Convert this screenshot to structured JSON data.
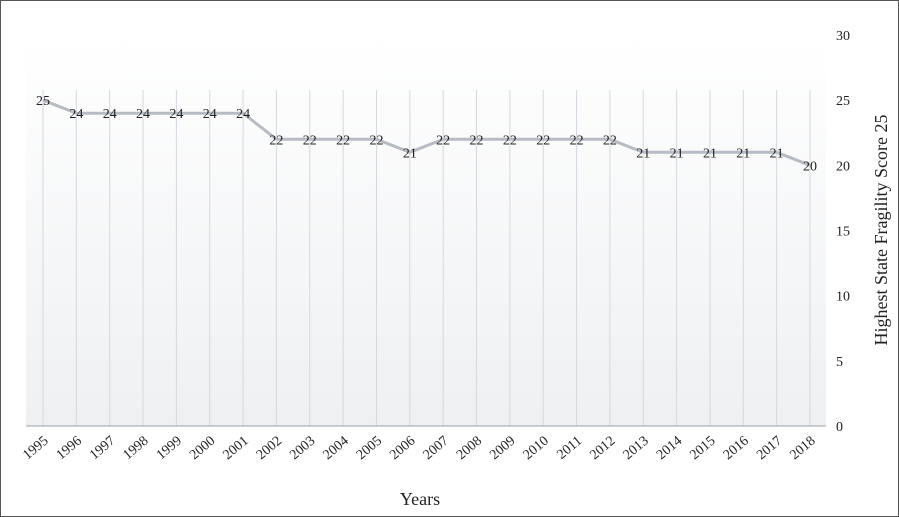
{
  "chart_data": {
    "type": "line",
    "x": [
      "1995",
      "1996",
      "1997",
      "1998",
      "1999",
      "2000",
      "2001",
      "2002",
      "2003",
      "2004",
      "2005",
      "2006",
      "2007",
      "2008",
      "2009",
      "2010",
      "2011",
      "2012",
      "2013",
      "2014",
      "2015",
      "2016",
      "2017",
      "2018"
    ],
    "values": [
      25,
      24,
      24,
      24,
      24,
      24,
      24,
      22,
      22,
      22,
      22,
      21,
      22,
      22,
      22,
      22,
      22,
      22,
      21,
      21,
      21,
      21,
      21,
      20
    ],
    "data_labels": [
      "25",
      "24",
      "24",
      "24",
      "24",
      "24",
      "24",
      "22",
      "22",
      "22",
      "22",
      "21",
      "22",
      "22",
      "22",
      "22",
      "22",
      "22",
      "21",
      "21",
      "21",
      "21",
      "21",
      "20"
    ],
    "xlabel": "Years",
    "ylabel": "Highest State Fragility Score 25",
    "ylim": [
      0,
      30
    ],
    "yticks": [
      "0",
      "5",
      "10",
      "15",
      "20",
      "25",
      "30"
    ],
    "y_axis_side": "right",
    "grid": "vertical",
    "line_color": "#b7bcc4",
    "grid_color": "#d4d8de",
    "plot_bg_top": "#ffffff",
    "plot_bg_bottom": "#eef0f2"
  }
}
